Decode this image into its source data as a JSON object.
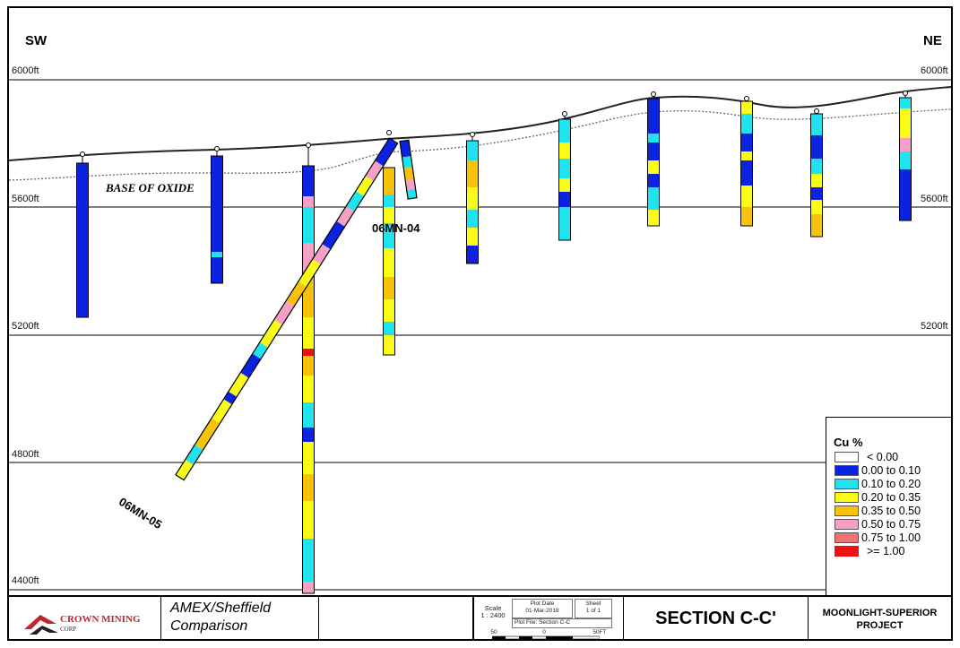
{
  "directions": {
    "left": "SW",
    "right": "NE"
  },
  "elevations": [
    "6000ft",
    "5600ft",
    "5200ft",
    "4800ft",
    "4400ft"
  ],
  "annotation": "BASE OF OXIDE",
  "hole_labels": {
    "h05": "06MN-05",
    "h04": "06MN-04"
  },
  "legend": {
    "title": "Cu %",
    "items": [
      {
        "label": "< 0.00",
        "color": "#ffffff"
      },
      {
        "label": "0.00 to 0.10",
        "color": "#0b22e0"
      },
      {
        "label": "0.10 to 0.20",
        "color": "#1fe3ee"
      },
      {
        "label": "0.20 to 0.35",
        "color": "#fbfb18"
      },
      {
        "label": "0.35 to 0.50",
        "color": "#f7c20c"
      },
      {
        "label": "0.50 to 0.75",
        "color": "#f7a0c6"
      },
      {
        "label": "0.75 to 1.00",
        "color": "#f07272"
      },
      {
        "label": ">= 1.00",
        "color": "#ee1111"
      }
    ]
  },
  "title_block": {
    "company": "CROWN MINING",
    "company_sub": "CORP",
    "comparison_line1": "AMEX/Sheffield",
    "comparison_line2": "Comparison",
    "scale_label": "Scale",
    "scale_value": "1 : 2400",
    "plot_date_label": "Plot Date",
    "plot_date_value": "01-Mar-2018",
    "sheet_label": "Sheet",
    "sheet_value": "1 of 1",
    "plot_file": "Plot File: Section C-C",
    "scalebar": [
      "50",
      "0",
      "50FT"
    ],
    "section": "SECTION C-C'",
    "project_line1": "MOONLIGHT-SUPERIOR",
    "project_line2": "PROJECT"
  }
}
